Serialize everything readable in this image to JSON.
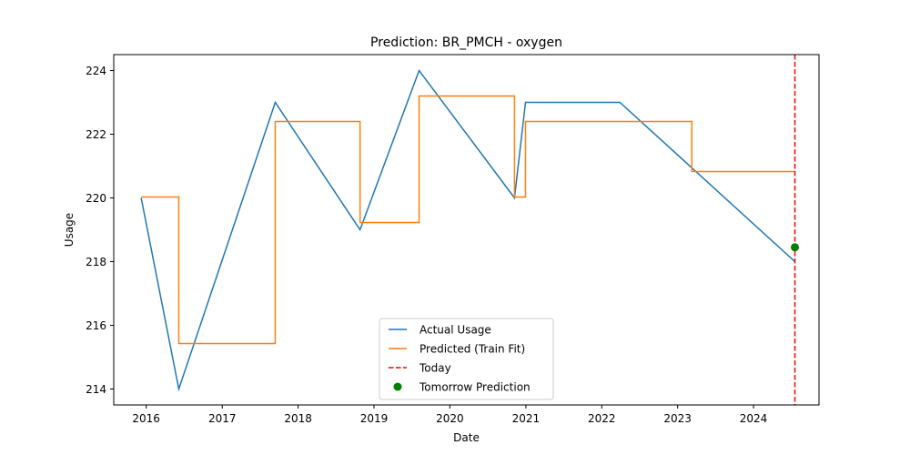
{
  "chart_data": {
    "type": "line",
    "title": "Prediction: BR_PMCH - oxygen",
    "xlabel": "Date",
    "ylabel": "Usage",
    "xlim": [
      "2015-07-29",
      "2024-11-11"
    ],
    "ylim": [
      213.5,
      224.5
    ],
    "x_ticks": [
      {
        "date": "2016-01-01",
        "label": "2016"
      },
      {
        "date": "2017-01-01",
        "label": "2017"
      },
      {
        "date": "2018-01-01",
        "label": "2018"
      },
      {
        "date": "2019-01-01",
        "label": "2019"
      },
      {
        "date": "2020-01-01",
        "label": "2020"
      },
      {
        "date": "2021-01-01",
        "label": "2021"
      },
      {
        "date": "2022-01-01",
        "label": "2022"
      },
      {
        "date": "2023-01-01",
        "label": "2023"
      },
      {
        "date": "2024-01-01",
        "label": "2024"
      }
    ],
    "y_ticks": [
      214,
      216,
      218,
      220,
      222,
      224
    ],
    "grid": false,
    "legend_position": "lower-center",
    "series": [
      {
        "name": "Actual Usage",
        "style": "line",
        "color": "#1f77b4",
        "x": [
          "2015-12-08",
          "2016-06-06",
          "2017-09-13",
          "2018-10-26",
          "2019-08-06",
          "2020-11-07",
          "2020-12-30",
          "2022-03-29",
          "2024-07-18"
        ],
        "y": [
          220,
          214,
          223,
          219,
          224,
          220,
          223,
          223,
          218
        ]
      },
      {
        "name": "Predicted (Train Fit)",
        "style": "step",
        "color": "#ff7f0e",
        "x": [
          "2015-12-08",
          "2016-06-06",
          "2017-09-13",
          "2018-10-26",
          "2019-08-06",
          "2020-11-07",
          "2020-12-30",
          "2023-03-10",
          "2024-07-18"
        ],
        "y": [
          220.03,
          215.43,
          222.4,
          219.23,
          223.2,
          220.03,
          222.4,
          220.83,
          220.83
        ]
      },
      {
        "name": "Today",
        "style": "vline",
        "color": "#ff0000",
        "x": "2024-07-18"
      },
      {
        "name": "Tomorrow Prediction",
        "style": "point",
        "color": "#008000",
        "x": "2024-07-18",
        "y": 218.45
      }
    ]
  }
}
